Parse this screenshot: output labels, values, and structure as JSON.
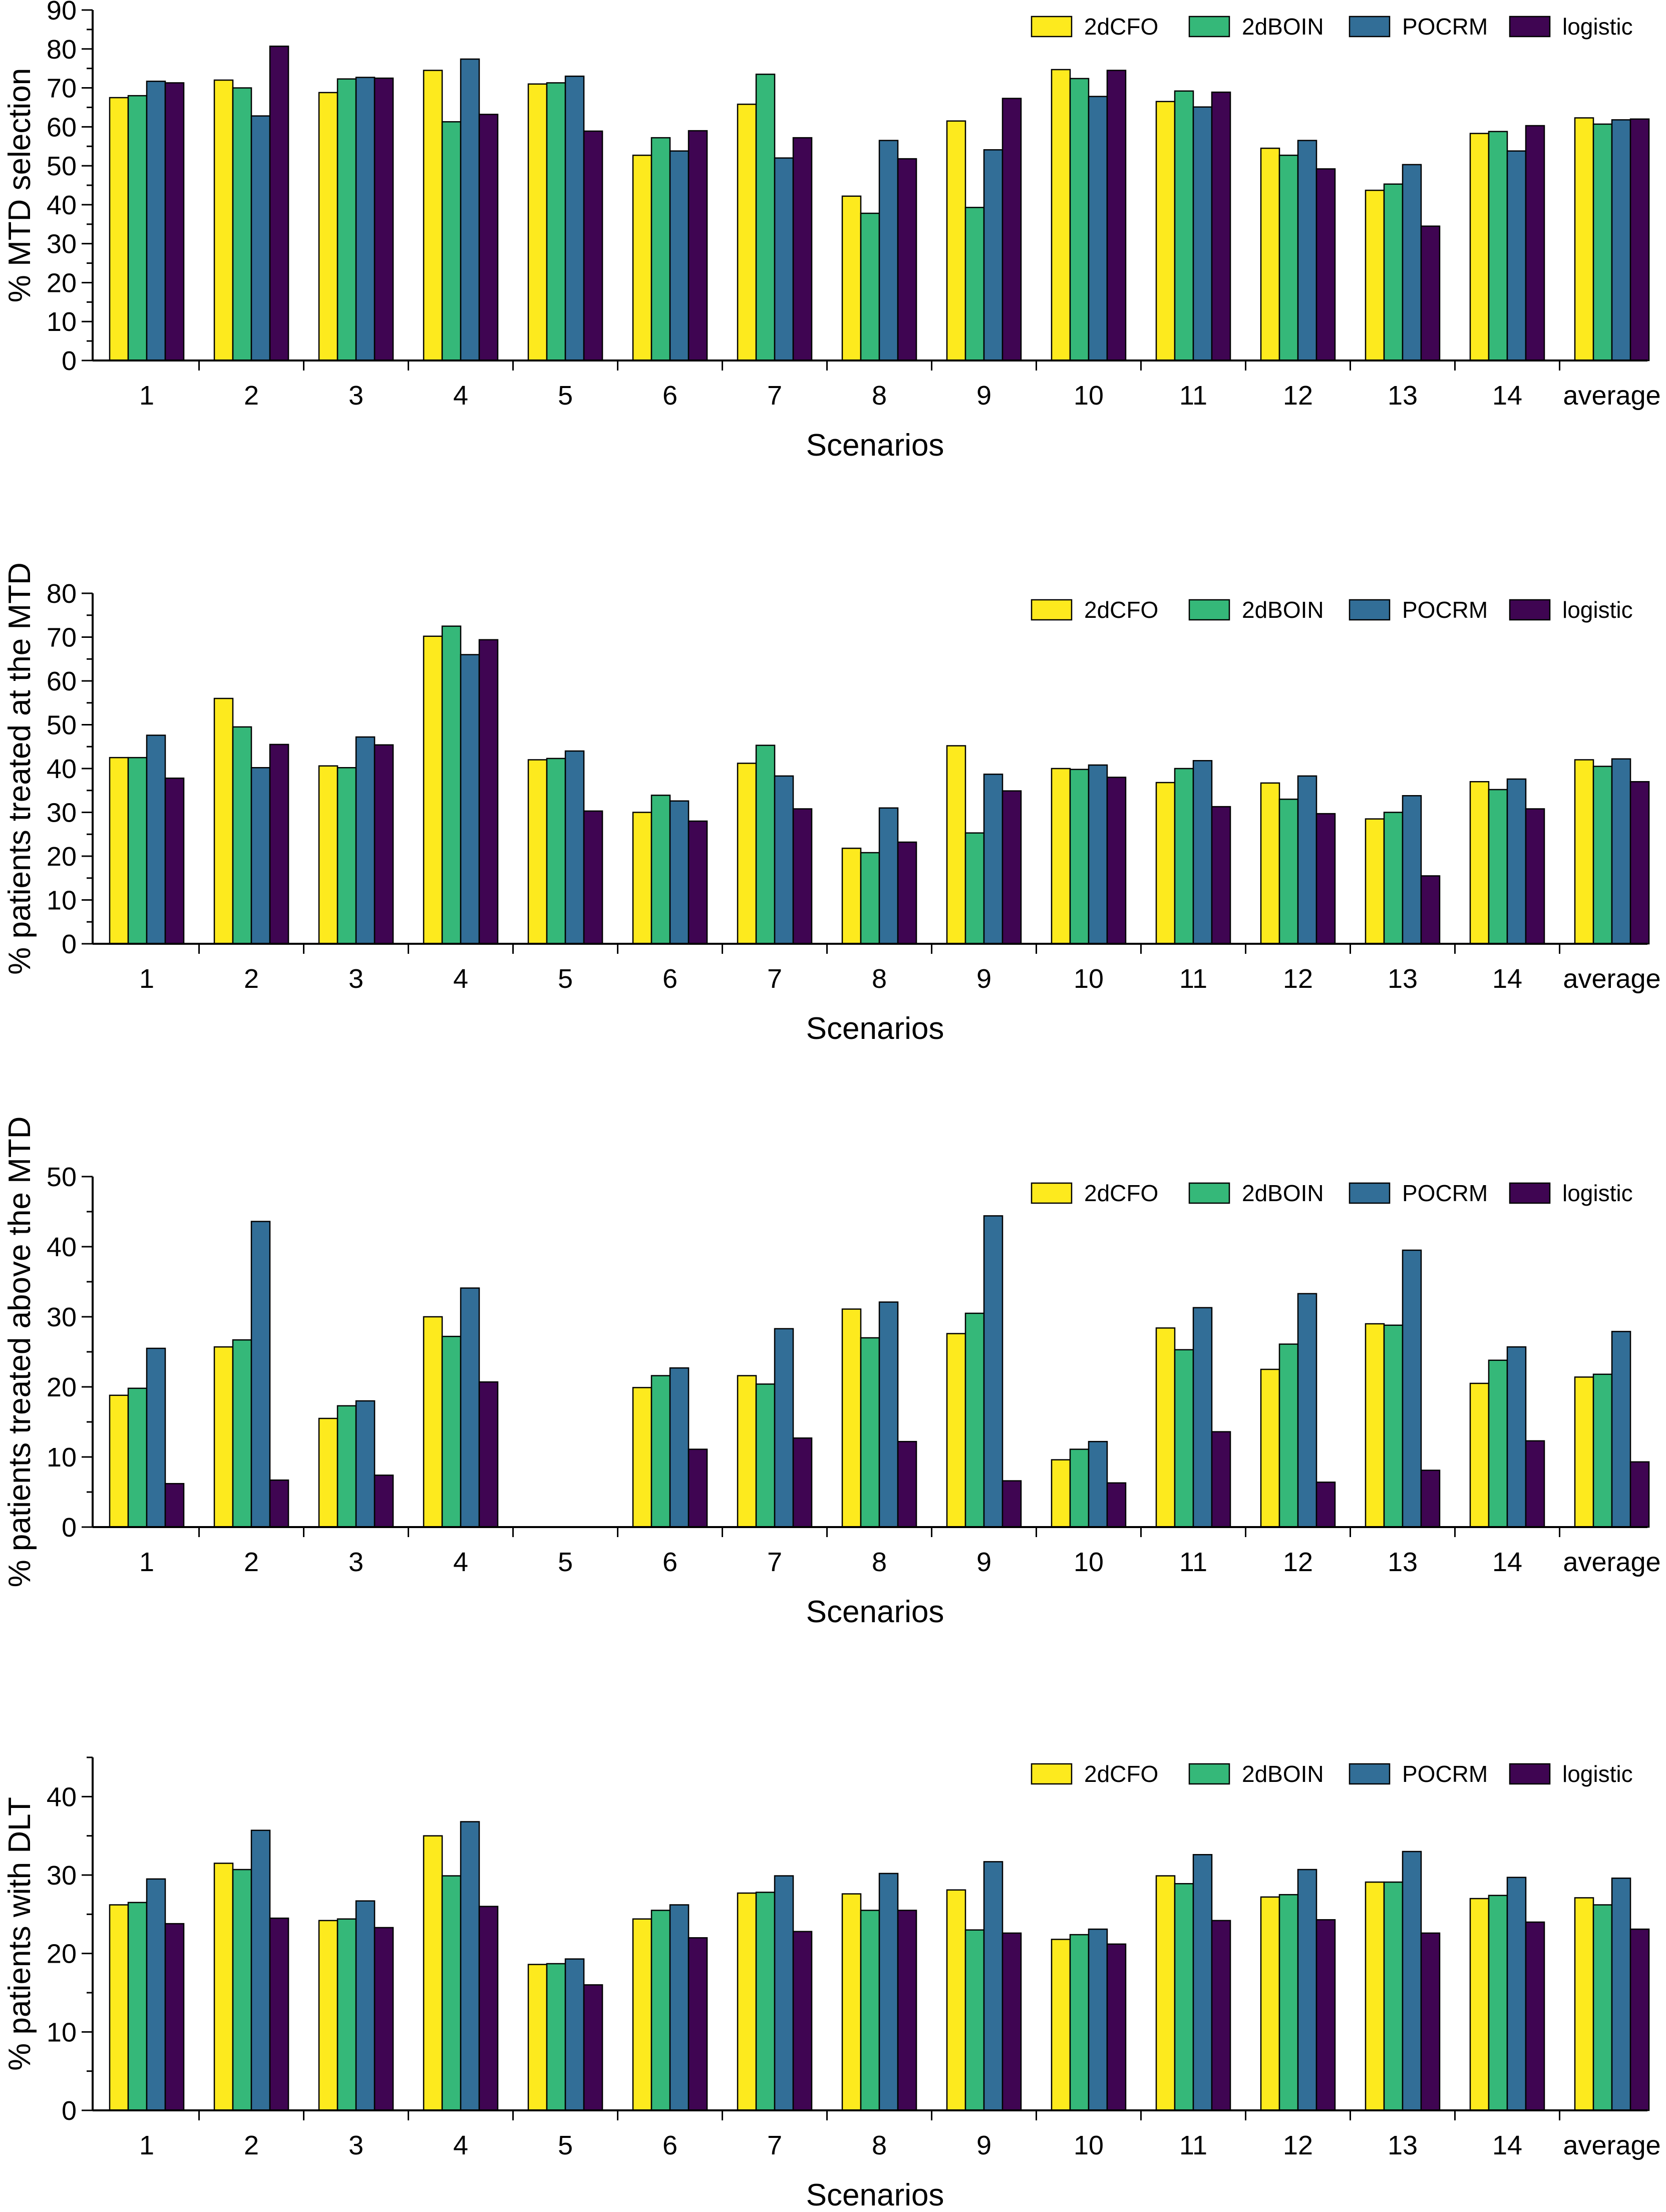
{
  "colors": {
    "2dCFO": "#fdea1e",
    "2dBOIN": "#35b879",
    "POCRM": "#326e97",
    "logistic": "#3f0552",
    "bar_stroke": "#000000",
    "axis": "#000000"
  },
  "chart_data": [
    {
      "type": "bar",
      "title": "",
      "xlabel": "Scenarios",
      "ylabel": "% MTD selection",
      "categories": [
        "1",
        "2",
        "3",
        "4",
        "5",
        "6",
        "7",
        "8",
        "9",
        "10",
        "11",
        "12",
        "13",
        "14",
        "average"
      ],
      "ylim": [
        0,
        90
      ],
      "yticks": [
        0,
        10,
        20,
        30,
        40,
        50,
        60,
        70,
        80,
        90
      ],
      "legend_position": "top-right",
      "series": [
        {
          "name": "2dCFO",
          "values": [
            67.5,
            72,
            68.8,
            74.5,
            71,
            52.7,
            65.8,
            42.2,
            61.5,
            74.7,
            66.5,
            54.5,
            43.7,
            58.3,
            62.3
          ]
        },
        {
          "name": "2dBOIN",
          "values": [
            68,
            70,
            72.3,
            61.3,
            71.3,
            57.2,
            73.5,
            37.8,
            39.3,
            72.4,
            69.2,
            52.7,
            45.3,
            58.8,
            60.7
          ]
        },
        {
          "name": "POCRM",
          "values": [
            71.7,
            62.8,
            72.7,
            77.4,
            73,
            53.8,
            52,
            56.5,
            54.1,
            67.8,
            65.1,
            56.5,
            50.3,
            53.8,
            61.8
          ]
        },
        {
          "name": "logistic",
          "values": [
            71.3,
            80.7,
            72.5,
            63.2,
            58.9,
            59,
            57.2,
            51.8,
            67.3,
            74.5,
            68.9,
            49.2,
            34.5,
            60.3,
            62
          ]
        }
      ]
    },
    {
      "type": "bar",
      "title": "",
      "xlabel": "Scenarios",
      "ylabel": "% patients treated at the MTD",
      "categories": [
        "1",
        "2",
        "3",
        "4",
        "5",
        "6",
        "7",
        "8",
        "9",
        "10",
        "11",
        "12",
        "13",
        "14",
        "average"
      ],
      "ylim": [
        0,
        80
      ],
      "yticks": [
        0,
        10,
        20,
        30,
        40,
        50,
        60,
        70,
        80
      ],
      "legend_position": "top-right",
      "series": [
        {
          "name": "2dCFO",
          "values": [
            42.5,
            56,
            40.6,
            70.2,
            42,
            30,
            41.2,
            21.8,
            45.2,
            40,
            36.8,
            36.7,
            28.5,
            37,
            42
          ]
        },
        {
          "name": "2dBOIN",
          "values": [
            42.5,
            49.5,
            40.2,
            72.5,
            42.3,
            33.9,
            45.3,
            20.8,
            25.3,
            39.8,
            40,
            33,
            30,
            35.2,
            40.5
          ]
        },
        {
          "name": "POCRM",
          "values": [
            47.6,
            40.2,
            47.2,
            66,
            44,
            32.6,
            38.3,
            31,
            38.7,
            40.8,
            41.8,
            38.3,
            33.8,
            37.6,
            42.2
          ]
        },
        {
          "name": "logistic",
          "values": [
            37.8,
            45.5,
            45.4,
            69.4,
            30.3,
            28,
            30.8,
            23.2,
            34.9,
            38,
            31.3,
            29.7,
            15.5,
            30.8,
            37
          ]
        }
      ]
    },
    {
      "type": "bar",
      "title": "",
      "xlabel": "Scenarios",
      "ylabel": "% patients treated above the MTD",
      "categories": [
        "1",
        "2",
        "3",
        "4",
        "5",
        "6",
        "7",
        "8",
        "9",
        "10",
        "11",
        "12",
        "13",
        "14",
        "average"
      ],
      "ylim": [
        0,
        50
      ],
      "yticks": [
        0,
        10,
        20,
        30,
        40,
        50
      ],
      "legend_position": "top-right",
      "series": [
        {
          "name": "2dCFO",
          "values": [
            18.8,
            25.7,
            15.5,
            30,
            0,
            19.9,
            21.6,
            31.1,
            27.6,
            9.6,
            28.4,
            22.5,
            29,
            20.5,
            21.4
          ]
        },
        {
          "name": "2dBOIN",
          "values": [
            19.8,
            26.7,
            17.3,
            27.2,
            0,
            21.6,
            20.4,
            27,
            30.5,
            11.1,
            25.3,
            26.1,
            28.8,
            23.8,
            21.8
          ]
        },
        {
          "name": "POCRM",
          "values": [
            25.5,
            43.6,
            18,
            34.1,
            0,
            22.7,
            28.3,
            32.1,
            44.4,
            12.2,
            31.3,
            33.3,
            39.5,
            25.7,
            27.9
          ]
        },
        {
          "name": "logistic",
          "values": [
            6.2,
            6.7,
            7.4,
            20.7,
            0,
            11.1,
            12.7,
            12.2,
            6.6,
            6.3,
            13.6,
            6.4,
            8.1,
            12.3,
            9.3
          ]
        }
      ]
    },
    {
      "type": "bar",
      "title": "",
      "xlabel": "Scenarios",
      "ylabel": "% patients with DLT",
      "categories": [
        "1",
        "2",
        "3",
        "4",
        "5",
        "6",
        "7",
        "8",
        "9",
        "10",
        "11",
        "12",
        "13",
        "14",
        "average"
      ],
      "ylim": [
        0,
        45
      ],
      "yticks": [
        0,
        10,
        20,
        30,
        40
      ],
      "legend_position": "top-right",
      "series": [
        {
          "name": "2dCFO",
          "values": [
            26.2,
            31.5,
            24.2,
            35,
            18.6,
            24.4,
            27.7,
            27.6,
            28.1,
            21.8,
            29.9,
            27.2,
            29.1,
            27,
            27.1
          ]
        },
        {
          "name": "2dBOIN",
          "values": [
            26.5,
            30.7,
            24.4,
            29.9,
            18.7,
            25.5,
            27.8,
            25.5,
            23,
            22.4,
            28.9,
            27.5,
            29.1,
            27.4,
            26.2
          ]
        },
        {
          "name": "POCRM",
          "values": [
            29.5,
            35.7,
            26.7,
            36.8,
            19.3,
            26.2,
            29.9,
            30.2,
            31.7,
            23.1,
            32.6,
            30.7,
            33,
            29.7,
            29.6
          ]
        },
        {
          "name": "logistic",
          "values": [
            23.8,
            24.5,
            23.3,
            26,
            16,
            22,
            22.8,
            25.5,
            22.6,
            21.2,
            24.2,
            24.3,
            22.6,
            24,
            23.1
          ]
        }
      ]
    }
  ]
}
